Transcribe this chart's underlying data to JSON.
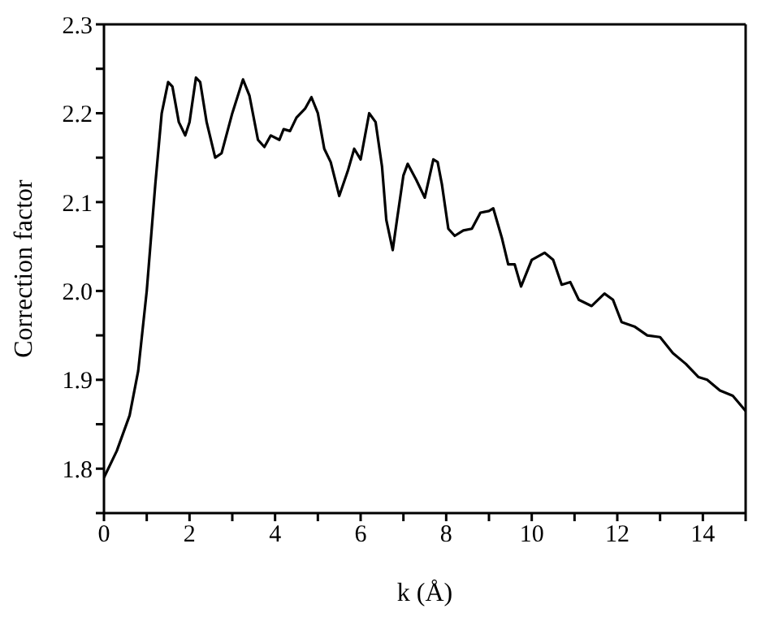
{
  "chart_data": {
    "type": "line",
    "xlabel": "k (Å)",
    "ylabel": "Correction factor",
    "xlim": [
      0,
      15
    ],
    "ylim": [
      1.75,
      2.3
    ],
    "xticks": [
      0,
      {
        "value": 1,
        "label": null
      },
      2,
      {
        "value": 3,
        "label": null
      },
      4,
      {
        "value": 5,
        "label": null
      },
      6,
      {
        "value": 7,
        "label": null
      },
      8,
      {
        "value": 9,
        "label": null
      },
      10,
      {
        "value": 11,
        "label": null
      },
      12,
      {
        "value": 13,
        "label": null
      },
      14,
      {
        "value": 15,
        "label": null
      }
    ],
    "yticks": [
      {
        "value": 1.75,
        "label": null
      },
      1.8,
      {
        "value": 1.85,
        "label": null
      },
      1.9,
      {
        "value": 1.95,
        "label": null
      },
      {
        "value": 2.0,
        "label": "2.0"
      },
      {
        "value": 2.05,
        "label": null
      },
      2.1,
      {
        "value": 2.15,
        "label": null
      },
      2.2,
      {
        "value": 2.25,
        "label": null
      },
      2.3
    ],
    "marker": "none",
    "line_style": "solid",
    "series": [
      {
        "color": "#000000",
        "x": [
          0,
          0.3,
          0.6,
          0.8,
          1.0,
          1.2,
          1.35,
          1.5,
          1.6,
          1.75,
          1.9,
          2.0,
          2.15,
          2.25,
          2.4,
          2.6,
          2.75,
          3.0,
          3.25,
          3.4,
          3.6,
          3.75,
          3.9,
          4.1,
          4.2,
          4.35,
          4.5,
          4.7,
          4.85,
          5.0,
          5.15,
          5.3,
          5.5,
          5.7,
          5.85,
          6.0,
          6.2,
          6.35,
          6.5,
          6.6,
          6.75,
          6.85,
          7.0,
          7.1,
          7.3,
          7.5,
          7.7,
          7.8,
          7.9,
          8.05,
          8.2,
          8.4,
          8.6,
          8.8,
          9.0,
          9.1,
          9.3,
          9.45,
          9.6,
          9.75,
          10.0,
          10.3,
          10.5,
          10.7,
          10.9,
          11.1,
          11.4,
          11.7,
          11.9,
          12.1,
          12.4,
          12.7,
          13.0,
          13.3,
          13.6,
          13.9,
          14.1,
          14.4,
          14.7,
          15.0
        ],
        "values": [
          1.79,
          1.82,
          1.86,
          1.91,
          2.0,
          2.12,
          2.2,
          2.235,
          2.23,
          2.19,
          2.175,
          2.19,
          2.24,
          2.235,
          2.19,
          2.15,
          2.155,
          2.2,
          2.238,
          2.22,
          2.17,
          2.162,
          2.175,
          2.17,
          2.182,
          2.18,
          2.195,
          2.205,
          2.218,
          2.2,
          2.16,
          2.145,
          2.107,
          2.135,
          2.16,
          2.148,
          2.2,
          2.19,
          2.14,
          2.08,
          2.046,
          2.08,
          2.13,
          2.143,
          2.125,
          2.105,
          2.148,
          2.145,
          2.12,
          2.07,
          2.062,
          2.068,
          2.07,
          2.088,
          2.09,
          2.093,
          2.06,
          2.03,
          2.03,
          2.005,
          2.035,
          2.043,
          2.035,
          2.007,
          2.01,
          1.99,
          1.983,
          1.997,
          1.99,
          1.965,
          1.96,
          1.95,
          1.948,
          1.93,
          1.918,
          1.903,
          1.9,
          1.888,
          1.882,
          1.865
        ]
      }
    ]
  }
}
